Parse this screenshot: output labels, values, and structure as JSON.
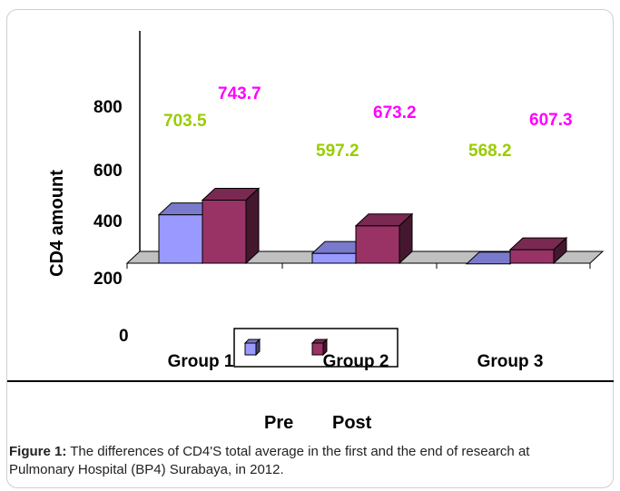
{
  "chart_data": {
    "type": "bar",
    "categories": [
      "Group 1",
      "Group 2",
      "Group 3"
    ],
    "series": [
      {
        "name": "Pre",
        "values": [
          703.5,
          597.2,
          568.2
        ],
        "labels": [
          "703.5",
          "597.2",
          "568.2"
        ],
        "color": "#9999ff",
        "label_color": "#99cc00"
      },
      {
        "name": "Post",
        "values": [
          743.7,
          673.2,
          607.3
        ],
        "labels": [
          "743.7",
          "673.2",
          "607.3"
        ],
        "color": "#993366",
        "label_color": "#ff00ff"
      }
    ],
    "ylabel": "CD4 amount",
    "yticks": [
      "0",
      "200",
      "400",
      "600",
      "800"
    ],
    "ylim": [
      0,
      1000
    ],
    "grid": false,
    "legend_placement": "bottom"
  },
  "legend_labels": [
    "Pre",
    "Post"
  ],
  "caption": {
    "label": "Figure 1:",
    "text": " The differences of CD4'S total average in the first and the end of research at Pulmonary Hospital (BP4) Surabaya, in 2012."
  }
}
